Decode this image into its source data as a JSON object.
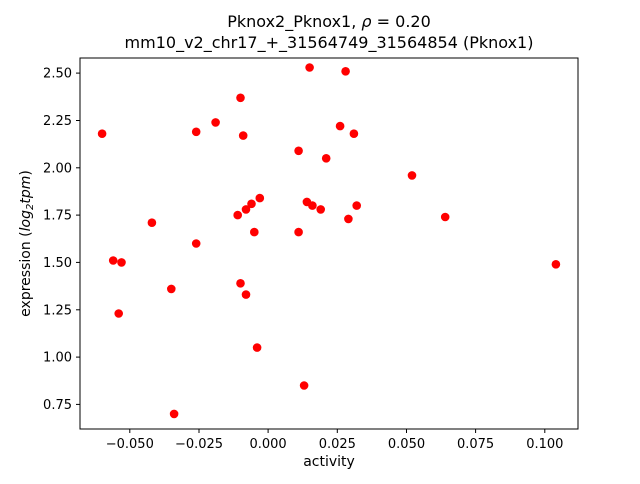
{
  "chart_data": {
    "type": "scatter",
    "title_line1_pre": "Pknox2_Pknox1, ",
    "title_line1_rho": "ρ",
    "title_line1_post": " = 0.20",
    "title_line2": "mm10_v2_chr17_+_31564749_31564854 (Pknox1)",
    "xlabel": "activity",
    "ylabel_prefix": "expression (",
    "ylabel_log": "log",
    "ylabel_sub": "2",
    "ylabel_tpm": "tpm",
    "ylabel_close": ")",
    "marker_color": "#ff0000",
    "axis_color": "#000000",
    "xlim": [
      -0.068,
      0.112
    ],
    "ylim": [
      0.62,
      2.58
    ],
    "x_ticks": [
      -0.05,
      -0.025,
      0.0,
      0.025,
      0.05,
      0.075,
      0.1
    ],
    "x_tick_labels": [
      "−0.050",
      "−0.025",
      "0.000",
      "0.025",
      "0.050",
      "0.075",
      "0.100"
    ],
    "y_ticks": [
      0.75,
      1.0,
      1.25,
      1.5,
      1.75,
      2.0,
      2.25,
      2.5
    ],
    "y_tick_labels": [
      "0.75",
      "1.00",
      "1.25",
      "1.50",
      "1.75",
      "2.00",
      "2.25",
      "2.50"
    ],
    "points": [
      [
        -0.06,
        2.18
      ],
      [
        -0.056,
        1.51
      ],
      [
        -0.054,
        1.23
      ],
      [
        -0.053,
        1.5
      ],
      [
        -0.042,
        1.71
      ],
      [
        -0.035,
        1.36
      ],
      [
        -0.034,
        0.7
      ],
      [
        -0.026,
        2.19
      ],
      [
        -0.026,
        1.6
      ],
      [
        -0.019,
        2.24
      ],
      [
        -0.011,
        1.75
      ],
      [
        -0.01,
        2.37
      ],
      [
        -0.01,
        1.39
      ],
      [
        -0.009,
        2.17
      ],
      [
        -0.008,
        1.78
      ],
      [
        -0.008,
        1.33
      ],
      [
        -0.006,
        1.81
      ],
      [
        -0.005,
        1.66
      ],
      [
        -0.004,
        1.05
      ],
      [
        -0.003,
        1.84
      ],
      [
        0.011,
        2.09
      ],
      [
        0.011,
        1.66
      ],
      [
        0.013,
        0.85
      ],
      [
        0.015,
        2.53
      ],
      [
        0.014,
        1.82
      ],
      [
        0.016,
        1.8
      ],
      [
        0.019,
        1.78
      ],
      [
        0.021,
        2.05
      ],
      [
        0.026,
        2.22
      ],
      [
        0.028,
        2.51
      ],
      [
        0.029,
        1.73
      ],
      [
        0.031,
        2.18
      ],
      [
        0.032,
        1.8
      ],
      [
        0.052,
        1.96
      ],
      [
        0.064,
        1.74
      ],
      [
        0.104,
        1.49
      ]
    ]
  }
}
